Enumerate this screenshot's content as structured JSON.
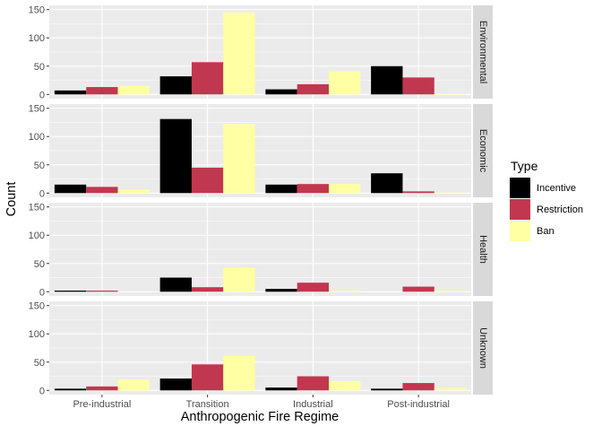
{
  "chart_data": {
    "type": "bar",
    "title": "",
    "xlabel": "Anthropogenic Fire Regime",
    "ylabel": "Count",
    "categories": [
      "Pre-industrial",
      "Transition",
      "Industrial",
      "Post-industrial"
    ],
    "ylim": [
      0,
      150
    ],
    "yticks": [
      0,
      50,
      100,
      150
    ],
    "grid": true,
    "legend": {
      "title": "Type",
      "position": "right",
      "entries": [
        {
          "name": "Incentive",
          "color": "#000000"
        },
        {
          "name": "Restriction",
          "color": "#C1374F"
        },
        {
          "name": "Ban",
          "color": "#FFFFA3"
        }
      ]
    },
    "facets": [
      {
        "label": "Environmental",
        "series": [
          {
            "name": "Incentive",
            "values": [
              7,
              32,
              9,
              50
            ]
          },
          {
            "name": "Restriction",
            "values": [
              13,
              57,
              18,
              30
            ]
          },
          {
            "name": "Ban",
            "values": [
              15,
              145,
              41,
              1
            ]
          }
        ]
      },
      {
        "label": "Economic",
        "series": [
          {
            "name": "Incentive",
            "values": [
              15,
              131,
              15,
              35
            ]
          },
          {
            "name": "Restriction",
            "values": [
              11,
              45,
              16,
              3
            ]
          },
          {
            "name": "Ban",
            "values": [
              6,
              122,
              16,
              1
            ]
          }
        ]
      },
      {
        "label": "Health",
        "series": [
          {
            "name": "Incentive",
            "values": [
              2,
              25,
              5,
              0
            ]
          },
          {
            "name": "Restriction",
            "values": [
              2,
              8,
              16,
              9
            ]
          },
          {
            "name": "Ban",
            "values": [
              0,
              42,
              2,
              2
            ]
          }
        ]
      },
      {
        "label": "Unknown",
        "series": [
          {
            "name": "Incentive",
            "values": [
              3,
              21,
              5,
              3
            ]
          },
          {
            "name": "Restriction",
            "values": [
              7,
              46,
              25,
              13
            ]
          },
          {
            "name": "Ban",
            "values": [
              19,
              61,
              16,
              4
            ]
          }
        ]
      }
    ]
  }
}
